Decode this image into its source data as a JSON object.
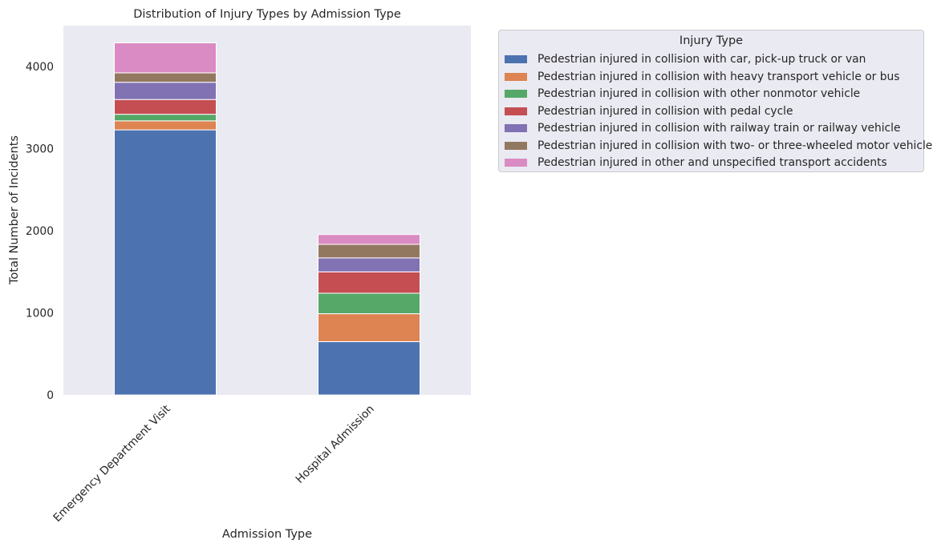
{
  "chart_data": {
    "type": "bar",
    "stacked": true,
    "title": "Distribution of Injury Types by Admission Type",
    "xlabel": "Admission Type",
    "ylabel": "Total Number of Incidents",
    "ylim": [
      0,
      4500
    ],
    "yticks": [
      0,
      1000,
      2000,
      3000,
      4000
    ],
    "grid": false,
    "legend_title": "Injury Type",
    "legend_position": "outside-right",
    "categories": [
      "Emergency Department Visit",
      "Hospital Admission"
    ],
    "series": [
      {
        "name": "Pedestrian injured in collision with car, pick-up truck or van",
        "color": "#4c72b0",
        "values": [
          3230,
          650
        ]
      },
      {
        "name": "Pedestrian injured in collision with heavy transport vehicle or bus",
        "color": "#dd8452",
        "values": [
          110,
          340
        ]
      },
      {
        "name": "Pedestrian injured in collision with other nonmotor vehicle",
        "color": "#55a868",
        "values": [
          80,
          250
        ]
      },
      {
        "name": "Pedestrian injured in collision with pedal cycle",
        "color": "#c44e52",
        "values": [
          180,
          260
        ]
      },
      {
        "name": "Pedestrian injured in collision with railway train or railway vehicle",
        "color": "#8172b3",
        "values": [
          210,
          170
        ]
      },
      {
        "name": "Pedestrian injured in collision with two- or three-wheeled motor vehicle",
        "color": "#937860",
        "values": [
          115,
          165
        ]
      },
      {
        "name": "Pedestrian injured in other and unspecified transport accidents",
        "color": "#da8bc3",
        "values": [
          365,
          120
        ]
      }
    ]
  }
}
